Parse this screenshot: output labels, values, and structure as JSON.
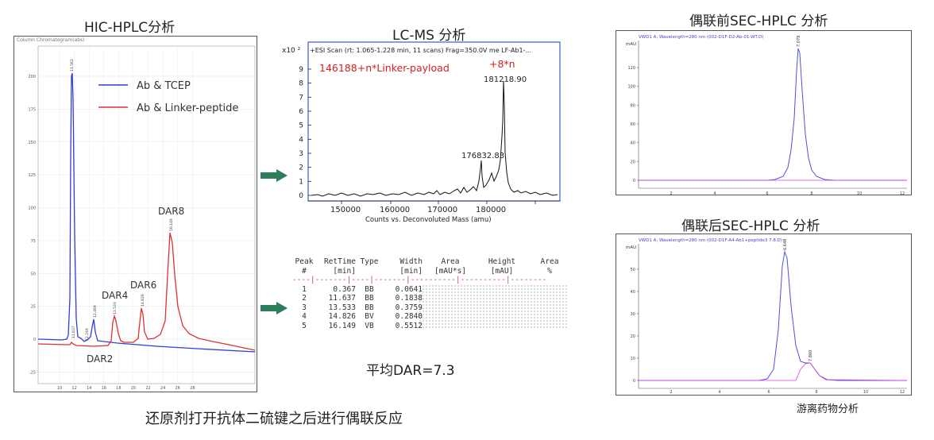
{
  "titles": {
    "hic": "HIC-HPLC分析",
    "lcms": "LC-MS 分析",
    "sec_before": "偶联前SEC-HPLC 分析",
    "sec_after": "偶联后SEC-HPLC 分析",
    "bottom_caption": "还原剂打开抗体二硫键之后进行偶联反应",
    "avg_dar": "平均DAR=7.3",
    "free_drug": "游离药物分析"
  },
  "hic": {
    "header": "Column Chromatogram(abs)",
    "legend": [
      {
        "label": "Ab & TCEP",
        "color": "#2f3fd6"
      },
      {
        "label": "Ab & Linker-peptide",
        "color": "#e03030"
      }
    ],
    "dar_labels": [
      "DAR2",
      "DAR4",
      "DAR6",
      "DAR8"
    ],
    "yticks": [
      "-25",
      "0",
      "25",
      "50",
      "75",
      "100",
      "125",
      "150",
      "175",
      "200"
    ],
    "xticks": [
      "10",
      "12",
      "14",
      "16",
      "18",
      "20",
      "22",
      "24",
      "26",
      "28"
    ],
    "peak_labels": [
      "11.562",
      "11.637",
      "12.249",
      "12.469",
      "13.533",
      "14.826",
      "16.149"
    ]
  },
  "lcms": {
    "exponent": "x10 ²",
    "header": "+ESI Scan (rt: 1.065-1.228 min, 11 scans) Frag=350.0V me LF-Ab1-...",
    "formula": "146188+n*Linker-payload",
    "n_label": "+8*n",
    "peak1": "181218.90",
    "peak2": "176832.83",
    "yticks": [
      "0",
      "1",
      "2",
      "3",
      "4",
      "5",
      "6",
      "7",
      "8",
      "9"
    ],
    "xticks": [
      "150000",
      "160000",
      "170000",
      "180000"
    ],
    "xlabel": "Counts vs. Deconvoluted Mass (amu)"
  },
  "peak_table": {
    "header1": [
      "Peak",
      "RetTime",
      "Type",
      "Width",
      "Area",
      "Height",
      "Area"
    ],
    "header2": [
      "#",
      "[min]",
      "",
      "[min]",
      "[mAU*s]",
      "[mAU]",
      "%"
    ],
    "divider": "----|-------|----|-------|----------|----------|--------",
    "rows": [
      [
        "1",
        "0.367",
        "BB",
        "0.0641"
      ],
      [
        "2",
        "11.637",
        "BB",
        "0.1838"
      ],
      [
        "3",
        "13.533",
        "BB",
        "0.3759"
      ],
      [
        "4",
        "14.826",
        "BV",
        "0.2840"
      ],
      [
        "5",
        "16.149",
        "VB",
        "0.5512"
      ]
    ]
  },
  "sec_before": {
    "header": "VWD1 A, Wavelength=280 nm (002-D1F-D2-Ab-01-WT.D)",
    "ylabel": "mAU",
    "yticks": [
      "0",
      "20",
      "40",
      "60",
      "80",
      "100",
      "120"
    ],
    "xticks": [
      "2",
      "4",
      "6",
      "8",
      "10",
      "12"
    ],
    "peak": "7.079"
  },
  "sec_after": {
    "header": "VWD1 A, Wavelength=280 nm (002-D1F-A4-Ab1+peptide3 7.8.D)",
    "ylabel": "mAU",
    "yticks": [
      "0",
      "10",
      "20",
      "30",
      "40",
      "50"
    ],
    "xticks": [
      "2",
      "4",
      "6",
      "8",
      "10",
      "12"
    ],
    "peak1": "6.648",
    "peak2": "7.860"
  }
}
